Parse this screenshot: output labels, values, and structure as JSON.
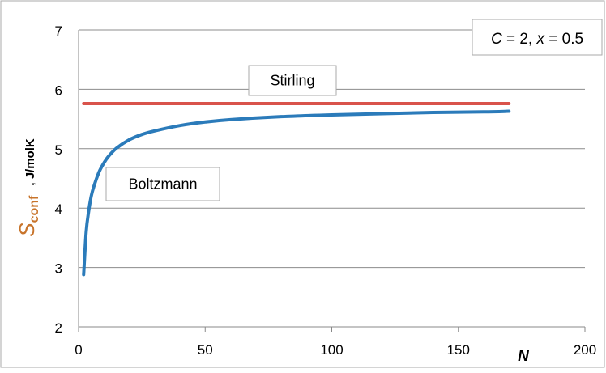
{
  "chart_data": {
    "type": "line",
    "title": "",
    "xlabel": "N",
    "ylabel_symbol": "S",
    "ylabel_subscript": "conf",
    "ylabel_unit": ", J/molK",
    "xlim": [
      0,
      200
    ],
    "ylim": [
      2,
      7
    ],
    "x_ticks": [
      0,
      50,
      100,
      150,
      200
    ],
    "y_ticks": [
      2,
      3,
      4,
      5,
      6,
      7
    ],
    "grid": "horizontal",
    "annotations": [
      {
        "text": "Stirling",
        "anchor_series": "Stirling"
      },
      {
        "text": "Boltzmann",
        "anchor_series": "Boltzmann"
      }
    ],
    "legend_box": {
      "c_label": "C",
      "c_value": " = 2, ",
      "x_label": "x",
      "x_value": " = 0.5",
      "placement": "top-right"
    },
    "series": [
      {
        "name": "Stirling",
        "color": "#d9534b",
        "x": [
          2,
          170
        ],
        "y": [
          5.76,
          5.76
        ]
      },
      {
        "name": "Boltzmann",
        "color": "#2b7bba",
        "x": [
          2,
          3,
          4,
          5,
          6,
          8,
          10,
          12,
          15,
          20,
          25,
          30,
          40,
          50,
          60,
          80,
          100,
          120,
          140,
          160,
          170
        ],
        "y": [
          2.88,
          3.6,
          3.95,
          4.2,
          4.36,
          4.6,
          4.76,
          4.88,
          5.01,
          5.15,
          5.24,
          5.3,
          5.39,
          5.45,
          5.49,
          5.54,
          5.57,
          5.59,
          5.61,
          5.62,
          5.63
        ]
      }
    ],
    "axis_color": "#888888",
    "grid_color": "#8c8c8c",
    "ylabel_color": "#c8742b"
  }
}
